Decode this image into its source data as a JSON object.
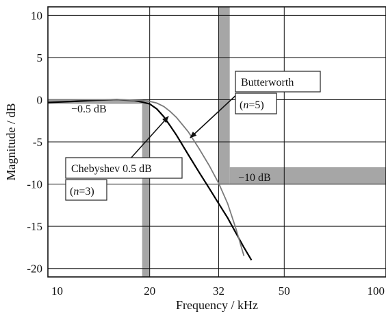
{
  "chart_data": {
    "type": "line",
    "xlabel": "Frequency / kHz",
    "ylabel": "Magnitude / dB",
    "xscale": "log",
    "xlim": [
      10,
      100
    ],
    "ylim": [
      -21,
      11
    ],
    "xticks": [
      10,
      20,
      32,
      50,
      100
    ],
    "xtick_labels": [
      "10",
      "20",
      "32",
      "50",
      "100"
    ],
    "yticks": [
      10,
      5,
      0,
      -5,
      -10,
      -15,
      -20
    ],
    "ytick_labels": [
      "10",
      "5",
      "0",
      "-5",
      "-10",
      "-15",
      "-20"
    ],
    "grid": true,
    "colors": {
      "butterworth": "#7a7a7a",
      "chebyshev": "#000000",
      "band": "#a6a6a6"
    },
    "series": [
      {
        "key": "chebyshev",
        "order": 3,
        "x": [
          10,
          12,
          14,
          16,
          18,
          19,
          20,
          21,
          22,
          23,
          24,
          26,
          28,
          30,
          32,
          34,
          36,
          38,
          40
        ],
        "y": [
          -0.33,
          -0.2,
          -0.05,
          0.0,
          -0.1,
          -0.28,
          -0.5,
          -1.1,
          -2.0,
          -3.1,
          -4.2,
          -6.5,
          -8.6,
          -10.5,
          -12.3,
          -14.0,
          -15.8,
          -17.5,
          -19.0
        ]
      },
      {
        "key": "butterworth",
        "order": 5,
        "x": [
          10,
          14,
          17,
          19,
          20,
          21,
          22,
          23,
          24,
          26,
          28,
          30,
          32,
          34,
          36,
          38
        ],
        "y": [
          0.0,
          0.0,
          -0.02,
          -0.1,
          -0.2,
          -0.4,
          -0.8,
          -1.4,
          -2.1,
          -3.8,
          -5.8,
          -7.8,
          -9.9,
          -12.3,
          -15.3,
          -18.5
        ]
      }
    ],
    "passband_limit": {
      "freq": 19,
      "level": -0.5,
      "label": "−0.5 dB"
    },
    "stopband_limit": {
      "freq": 32,
      "level": -10,
      "label": "−10 dB"
    },
    "callouts": {
      "butterworth": {
        "line1": "Butterworth",
        "line2_italic": "n",
        "line2_rest": "=5)",
        "line2_open": "("
      },
      "chebyshev": {
        "line1": "Chebyshev 0.5 dB",
        "line2_open": "(",
        "line2_italic": "n",
        "line2_rest": "=3)"
      }
    }
  }
}
